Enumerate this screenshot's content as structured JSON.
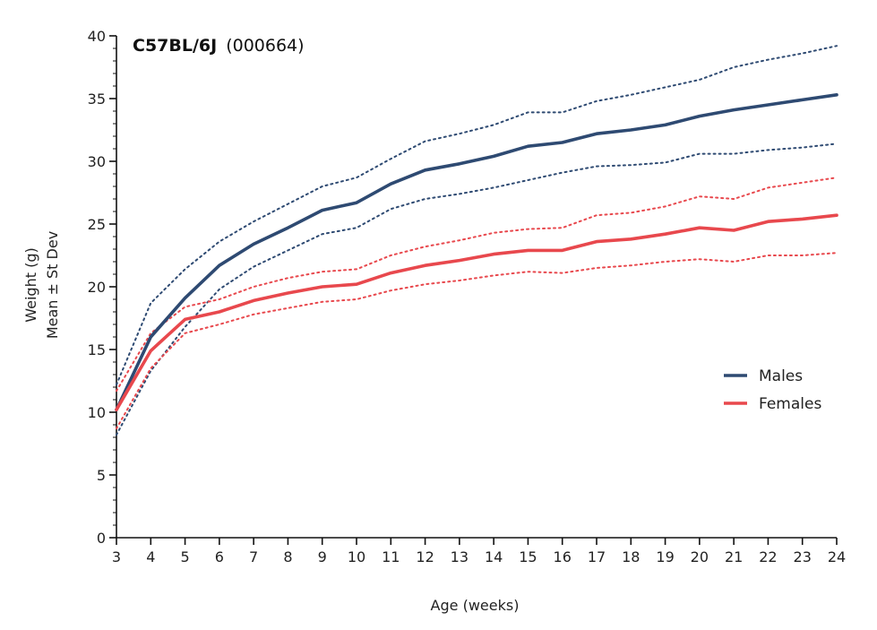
{
  "chart_data": {
    "type": "line",
    "title": "C57BL/6J",
    "subtitle": "(000664)",
    "xlabel": "Age (weeks)",
    "ylabel_line1": "Weight (g)",
    "ylabel_line2": "Mean ± St Dev",
    "xlim": [
      3,
      24
    ],
    "ylim": [
      0,
      40
    ],
    "x": [
      3,
      4,
      5,
      6,
      7,
      8,
      9,
      10,
      11,
      12,
      13,
      14,
      15,
      16,
      17,
      18,
      19,
      20,
      21,
      22,
      23,
      24
    ],
    "xticks": [
      3,
      4,
      5,
      6,
      7,
      8,
      9,
      10,
      11,
      12,
      13,
      14,
      15,
      16,
      17,
      18,
      19,
      20,
      21,
      22,
      23,
      24
    ],
    "yticks": [
      0,
      5,
      10,
      15,
      20,
      25,
      30,
      35,
      40
    ],
    "legend_position": "right-middle",
    "series": [
      {
        "name": "Males",
        "color": "#2e4a72",
        "mean": [
          10.2,
          16.0,
          19.1,
          21.7,
          23.4,
          24.7,
          26.1,
          26.7,
          28.2,
          29.3,
          29.8,
          30.4,
          31.2,
          31.5,
          32.2,
          32.5,
          32.9,
          33.6,
          34.1,
          34.5,
          34.9,
          35.3
        ],
        "upper": [
          12.2,
          18.7,
          21.4,
          23.6,
          25.2,
          26.6,
          28.0,
          28.7,
          30.2,
          31.6,
          32.2,
          32.9,
          33.9,
          33.9,
          34.8,
          35.3,
          35.9,
          36.5,
          37.5,
          38.1,
          38.6,
          39.2
        ],
        "lower": [
          8.2,
          13.3,
          16.8,
          19.8,
          21.6,
          22.9,
          24.2,
          24.7,
          26.2,
          27.0,
          27.4,
          27.9,
          28.5,
          29.1,
          29.6,
          29.7,
          29.9,
          30.6,
          30.6,
          30.9,
          31.1,
          31.4
        ]
      },
      {
        "name": "Females",
        "color": "#e8484d",
        "mean": [
          10.2,
          14.9,
          17.4,
          18.0,
          18.9,
          19.5,
          20.0,
          20.2,
          21.1,
          21.7,
          22.1,
          22.6,
          22.9,
          22.9,
          23.6,
          23.8,
          24.2,
          24.7,
          24.5,
          25.2,
          25.4,
          25.7
        ],
        "upper": [
          11.7,
          16.3,
          18.4,
          19.0,
          20.0,
          20.7,
          21.2,
          21.4,
          22.5,
          23.2,
          23.7,
          24.3,
          24.6,
          24.7,
          25.7,
          25.9,
          26.4,
          27.2,
          27.0,
          27.9,
          28.3,
          28.7
        ],
        "lower": [
          8.7,
          13.5,
          16.3,
          17.0,
          17.8,
          18.3,
          18.8,
          19.0,
          19.7,
          20.2,
          20.5,
          20.9,
          21.2,
          21.1,
          21.5,
          21.7,
          22.0,
          22.2,
          22.0,
          22.5,
          22.5,
          22.7
        ]
      }
    ]
  }
}
